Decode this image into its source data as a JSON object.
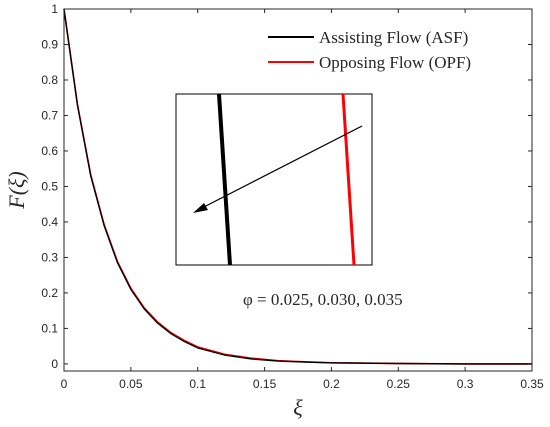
{
  "chart_data": {
    "type": "line",
    "xlabel": "ξ",
    "ylabel": "F(ξ)",
    "xlim": [
      0,
      0.35
    ],
    "ylim": [
      -0.02,
      1
    ],
    "xticks": [
      "0",
      "0.05",
      "0.1",
      "0.15",
      "0.2",
      "0.25",
      "0.3",
      "0.35"
    ],
    "yticks": [
      "0",
      "0.1",
      "0.2",
      "0.3",
      "0.4",
      "0.5",
      "0.6",
      "0.7",
      "0.8",
      "0.9",
      "1"
    ],
    "grid": false,
    "legend_position": "top-right",
    "series": [
      {
        "name": "Assisting Flow (ASF)",
        "color": "#000000",
        "x": [
          0,
          0.01,
          0.02,
          0.03,
          0.04,
          0.05,
          0.06,
          0.07,
          0.08,
          0.09,
          0.1,
          0.12,
          0.14,
          0.16,
          0.18,
          0.2,
          0.25,
          0.3,
          0.35
        ],
        "y": [
          1.0,
          0.73,
          0.53,
          0.39,
          0.285,
          0.21,
          0.155,
          0.115,
          0.085,
          0.063,
          0.045,
          0.025,
          0.014,
          0.008,
          0.005,
          0.003,
          0.001,
          0.0,
          0.0
        ]
      },
      {
        "name": "Opposing Flow (OPF)",
        "color": "#ff0000",
        "x": [
          0,
          0.01,
          0.02,
          0.03,
          0.04,
          0.05,
          0.06,
          0.07,
          0.08,
          0.09,
          0.1,
          0.12,
          0.14,
          0.16,
          0.18,
          0.2,
          0.25,
          0.3,
          0.35
        ],
        "y": [
          1.0,
          0.732,
          0.533,
          0.393,
          0.288,
          0.213,
          0.158,
          0.118,
          0.088,
          0.066,
          0.048,
          0.027,
          0.016,
          0.009,
          0.006,
          0.003,
          0.001,
          0.0,
          0.0
        ]
      }
    ],
    "annotation": "φ = 0.025, 0.030, 0.035"
  }
}
